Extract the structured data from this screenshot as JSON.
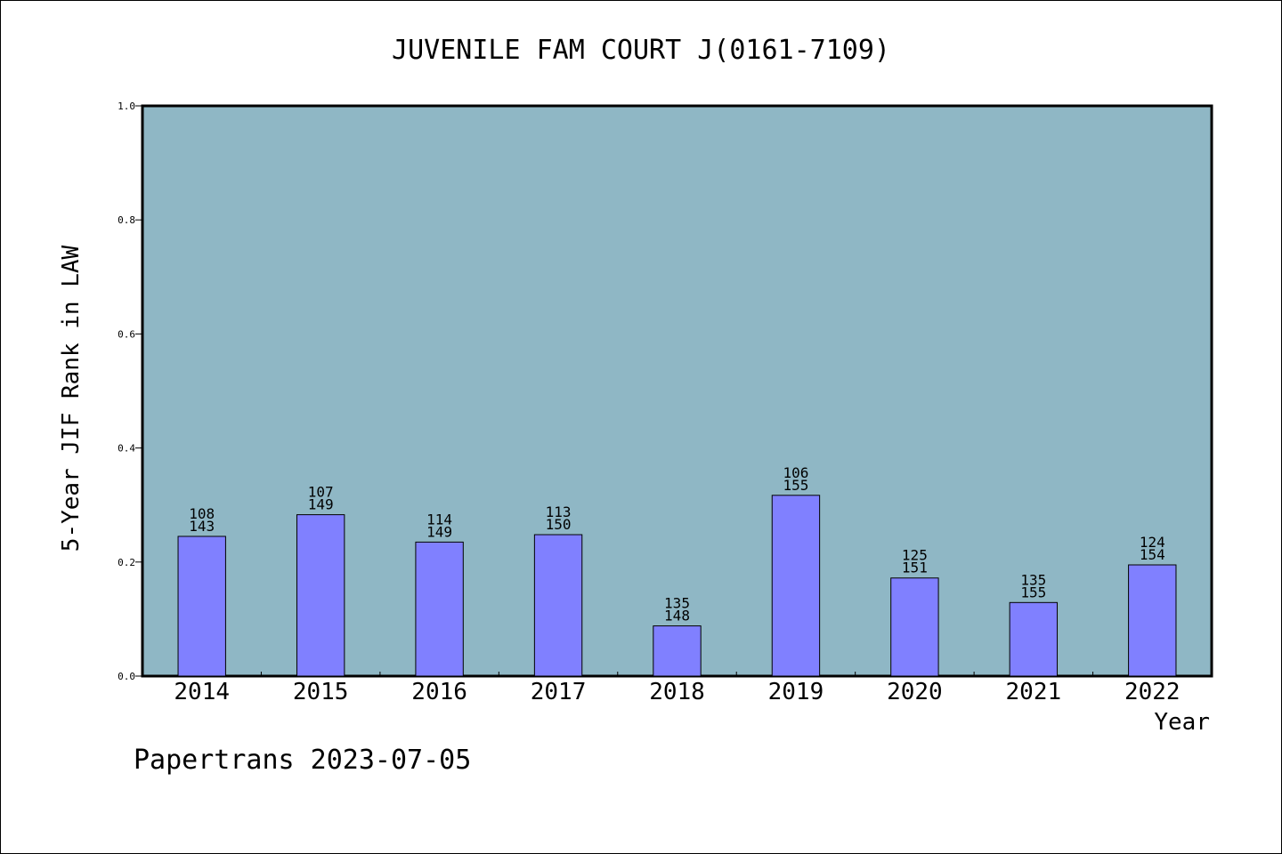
{
  "colors": {
    "plot_background": "#8fb7c5",
    "bar_fill": "#8080ff",
    "bar_stroke": "#000000",
    "frame": "#000000"
  },
  "footer": {
    "text": "Papertrans 2023-07-05"
  },
  "chart_data": {
    "type": "bar",
    "title": "JUVENILE FAM COURT J(0161-7109)",
    "xlabel": "Year",
    "ylabel": "5-Year JIF Rank in LAW",
    "ylim": [
      0,
      1.0
    ],
    "yticks": [
      "0.0",
      "0.2",
      "0.4",
      "0.6",
      "0.8",
      "1.0"
    ],
    "grid": false,
    "categories": [
      "2014",
      "2015",
      "2016",
      "2017",
      "2018",
      "2019",
      "2020",
      "2021",
      "2022"
    ],
    "values": [
      0.245,
      0.283,
      0.235,
      0.248,
      0.088,
      0.317,
      0.172,
      0.129,
      0.195
    ],
    "annotations": [
      {
        "rank": "108",
        "total": "143"
      },
      {
        "rank": "107",
        "total": "149"
      },
      {
        "rank": "114",
        "total": "149"
      },
      {
        "rank": "113",
        "total": "150"
      },
      {
        "rank": "135",
        "total": "148"
      },
      {
        "rank": "106",
        "total": "155"
      },
      {
        "rank": "125",
        "total": "151"
      },
      {
        "rank": "135",
        "total": "155"
      },
      {
        "rank": "124",
        "total": "154"
      }
    ]
  }
}
